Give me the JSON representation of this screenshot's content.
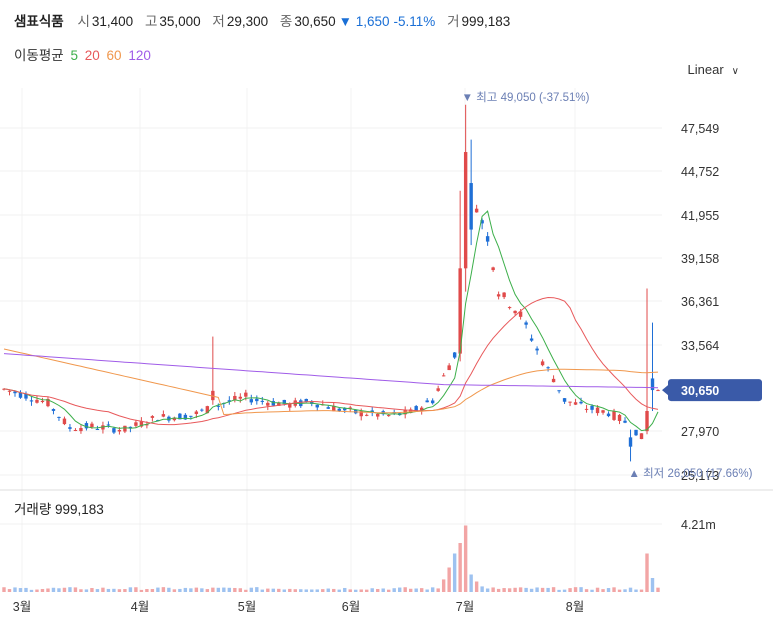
{
  "header": {
    "name": "샘표식품",
    "open_label": "시",
    "open": "31,400",
    "high_label": "고",
    "high": "35,000",
    "low_label": "저",
    "low": "29,300",
    "close_label": "종",
    "close": "30,650",
    "change": "▼ 1,650",
    "change_pct": "-5.11%",
    "volume_label": "거",
    "volume": "999,183"
  },
  "ma_legend": {
    "label": "이동평균",
    "items": [
      {
        "period": "5",
        "color": "#3caf4a"
      },
      {
        "period": "20",
        "color": "#e8595b"
      },
      {
        "period": "60",
        "color": "#f0974c"
      },
      {
        "period": "120",
        "color": "#a05ce8"
      }
    ]
  },
  "scale_toggle": "Linear",
  "chart_data": {
    "type": "candlestick",
    "price_axis_ticks": [
      "47,549",
      "44,752",
      "41,955",
      "39,158",
      "36,361",
      "33,564",
      "27,970",
      "25,173"
    ],
    "current_price_label": "30,650",
    "x_ticks": [
      "3월",
      "4월",
      "5월",
      "6월",
      "7월",
      "8월"
    ],
    "high_annotation": "▼ 최고 49,050 (-37.51%)",
    "low_annotation": "▲ 최저 26,050 (17.66%)",
    "volume_title": "거래량 999,183",
    "volume_tick": "4.21m",
    "up_color": "#e04a4a",
    "down_color": "#1f6fd6"
  }
}
